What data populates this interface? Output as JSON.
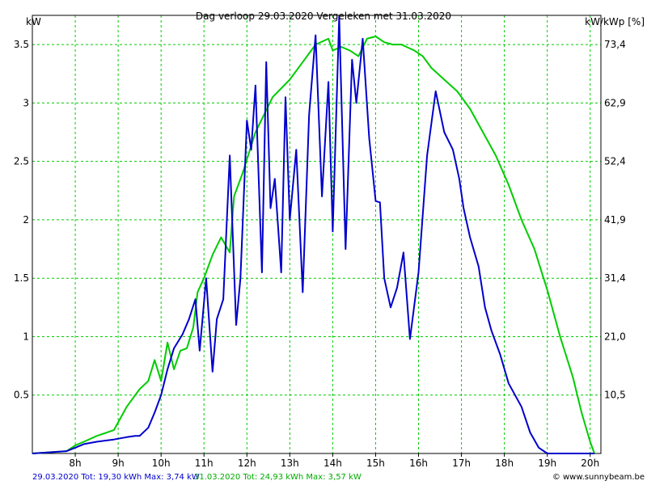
{
  "chart_data": {
    "type": "line",
    "title": "Dag  verloop 29.03.2020   Vergeleken met 31.03.2020",
    "ylabel_left": "kW",
    "ylabel_right": "kW/kWp [%]",
    "ylim": [
      0,
      3.75
    ],
    "y_ticks": [
      "0.5",
      "1",
      "1.5",
      "2",
      "2.5",
      "3",
      "3.5"
    ],
    "y_ticks_right": [
      "10,5",
      "21,0",
      "31,4",
      "41,9",
      "52,4",
      "62,9",
      "73,4"
    ],
    "x_ticks": [
      "8h",
      "9h",
      "10h",
      "11h",
      "12h",
      "13h",
      "14h",
      "15h",
      "16h",
      "17h",
      "18h",
      "19h",
      "20h"
    ],
    "grid": true,
    "series": [
      {
        "name": "29.03.2020",
        "color": "#0000cc",
        "x": [
          7.0,
          7.8,
          8.0,
          8.2,
          8.5,
          8.9,
          9.2,
          9.4,
          9.5,
          9.7,
          9.85,
          10.0,
          10.15,
          10.3,
          10.5,
          10.65,
          10.8,
          10.9,
          11.05,
          11.2,
          11.3,
          11.45,
          11.6,
          11.75,
          11.85,
          12.0,
          12.1,
          12.2,
          12.35,
          12.45,
          12.55,
          12.65,
          12.8,
          12.9,
          13.0,
          13.15,
          13.3,
          13.45,
          13.6,
          13.75,
          13.9,
          14.0,
          14.15,
          14.3,
          14.45,
          14.55,
          14.7,
          14.85,
          15.0,
          15.1,
          15.2,
          15.35,
          15.5,
          15.65,
          15.8,
          16.0,
          16.2,
          16.4,
          16.6,
          16.8,
          16.95,
          17.05,
          17.2,
          17.4,
          17.55,
          17.7,
          17.9,
          18.1,
          18.4,
          18.6,
          18.8,
          19.0,
          19.2,
          19.4,
          19.6,
          19.8,
          19.95,
          20.1
        ],
        "y": [
          0.0,
          0.02,
          0.05,
          0.08,
          0.1,
          0.12,
          0.14,
          0.15,
          0.15,
          0.22,
          0.35,
          0.5,
          0.72,
          0.9,
          1.02,
          1.15,
          1.32,
          0.88,
          1.5,
          0.7,
          1.15,
          1.32,
          2.55,
          1.1,
          1.5,
          2.85,
          2.6,
          3.15,
          1.55,
          3.35,
          2.1,
          2.35,
          1.55,
          3.05,
          2.0,
          2.6,
          1.38,
          2.9,
          3.58,
          2.2,
          3.18,
          1.9,
          3.74,
          1.75,
          3.37,
          3.0,
          3.55,
          2.7,
          2.16,
          2.15,
          1.5,
          1.25,
          1.42,
          1.72,
          0.98,
          1.55,
          2.55,
          3.1,
          2.75,
          2.6,
          2.35,
          2.1,
          1.85,
          1.6,
          1.25,
          1.05,
          0.85,
          0.6,
          0.4,
          0.18,
          0.05,
          0.0,
          0.0,
          0.0,
          0.0,
          0.0,
          0.0,
          0.0
        ],
        "legend_text": "29.03.2020 Tot: 19,30 kWh Max: 3,74 kW"
      },
      {
        "name": "31.03.2020",
        "color": "#00cc00",
        "x": [
          7.0,
          7.8,
          8.0,
          8.2,
          8.5,
          8.9,
          9.2,
          9.5,
          9.7,
          9.85,
          10.0,
          10.15,
          10.3,
          10.45,
          10.6,
          10.75,
          10.85,
          11.0,
          11.2,
          11.4,
          11.6,
          11.7,
          11.9,
          12.2,
          12.6,
          13.0,
          13.3,
          13.6,
          13.9,
          14.0,
          14.2,
          14.4,
          14.6,
          14.8,
          15.0,
          15.2,
          15.4,
          15.6,
          15.9,
          16.1,
          16.3,
          16.6,
          16.9,
          17.2,
          17.5,
          17.8,
          18.1,
          18.4,
          18.7,
          19.0,
          19.3,
          19.6,
          19.8,
          20.0,
          20.1
        ],
        "y": [
          0.0,
          0.02,
          0.07,
          0.1,
          0.15,
          0.2,
          0.4,
          0.55,
          0.62,
          0.8,
          0.62,
          0.95,
          0.72,
          0.88,
          0.9,
          1.08,
          1.38,
          1.5,
          1.7,
          1.85,
          1.72,
          2.2,
          2.4,
          2.75,
          3.05,
          3.2,
          3.35,
          3.5,
          3.55,
          3.45,
          3.48,
          3.45,
          3.4,
          3.55,
          3.57,
          3.52,
          3.5,
          3.5,
          3.45,
          3.4,
          3.3,
          3.2,
          3.1,
          2.95,
          2.75,
          2.55,
          2.3,
          2.0,
          1.75,
          1.4,
          1.0,
          0.65,
          0.35,
          0.1,
          0.0
        ],
        "legend_text": "31.03.2020 Tot: 24,93 kWh Max: 3,57 kW"
      }
    ],
    "credit": "© www.sunnybeam.be"
  }
}
